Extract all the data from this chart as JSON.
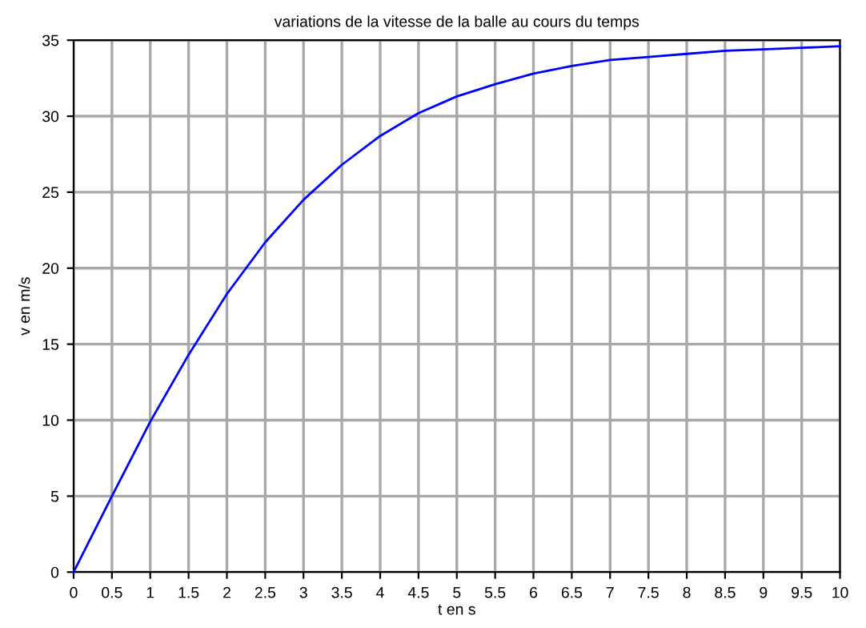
{
  "chart_data": {
    "type": "line",
    "title": "variations de la vitesse de la balle au cours du temps",
    "xlabel": "t en s",
    "ylabel": "v en m/s",
    "x": [
      0,
      0.5,
      1,
      1.5,
      2,
      2.5,
      3,
      3.5,
      4,
      4.5,
      5,
      5.5,
      6,
      6.5,
      7,
      7.5,
      8,
      8.5,
      9,
      9.5,
      10
    ],
    "series": [
      {
        "color": "#0000ff",
        "values": [
          0,
          5.0,
          9.9,
          14.3,
          18.3,
          21.7,
          24.5,
          26.8,
          28.7,
          30.2,
          31.3,
          32.1,
          32.8,
          33.3,
          33.7,
          33.9,
          34.1,
          34.3,
          34.4,
          34.5,
          34.6
        ]
      }
    ],
    "xlim": [
      0,
      10
    ],
    "ylim": [
      0,
      35
    ],
    "xticks": [
      0,
      0.5,
      1,
      1.5,
      2,
      2.5,
      3,
      3.5,
      4,
      4.5,
      5,
      5.5,
      6,
      6.5,
      7,
      7.5,
      8,
      8.5,
      9,
      9.5,
      10
    ],
    "yticks": [
      0,
      5,
      10,
      15,
      20,
      25,
      30,
      35
    ],
    "grid": true,
    "marker": "none",
    "line_style": "solid"
  }
}
